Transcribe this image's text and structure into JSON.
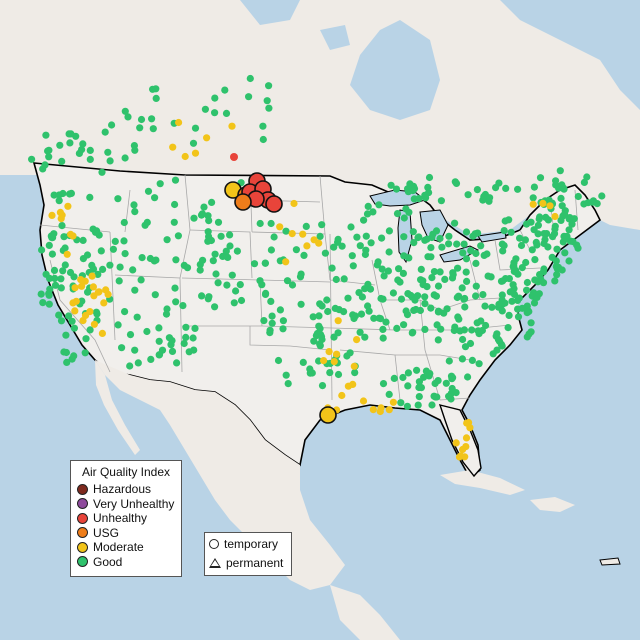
{
  "legend": {
    "title": "Air Quality Index",
    "categories": [
      {
        "label": "Hazardous",
        "color": "#7e2a1e"
      },
      {
        "label": "Very Unhealthy",
        "color": "#8e4a9c"
      },
      {
        "label": "Unhealthy",
        "color": "#e8443a"
      },
      {
        "label": "USG",
        "color": "#ee7d1a"
      },
      {
        "label": "Moderate",
        "color": "#f2c419"
      },
      {
        "label": "Good",
        "color": "#2fc26c"
      }
    ]
  },
  "monitor_types": [
    {
      "label": "temporary",
      "shape": "circle"
    },
    {
      "label": "permanent",
      "shape": "triangle"
    }
  ],
  "colors": {
    "water": "#b9d3e6",
    "land": "#efebe6",
    "us_land": "#f1efec",
    "state_line": "#a8a8a8",
    "border": "#000000",
    "no_data": "#bcbcbc"
  },
  "highlighted_sites": [
    {
      "category": "Moderate",
      "region": "Montana",
      "size": "large"
    },
    {
      "category": "USG",
      "region": "Montana",
      "size": "large"
    },
    {
      "category": "Unhealthy",
      "region": "Montana",
      "size": "large"
    },
    {
      "category": "Unhealthy",
      "region": "Montana",
      "size": "large"
    },
    {
      "category": "Unhealthy",
      "region": "Montana",
      "size": "large"
    },
    {
      "category": "Unhealthy",
      "region": "Montana",
      "size": "large"
    },
    {
      "category": "Unhealthy",
      "region": "Montana",
      "size": "large"
    },
    {
      "category": "USG",
      "region": "Montana",
      "size": "large"
    },
    {
      "category": "Unhealthy",
      "region": "Montana",
      "size": "large"
    },
    {
      "category": "Moderate",
      "region": "Texas",
      "size": "large"
    },
    {
      "category": "Unhealthy",
      "region": "Saskatchewan",
      "size": "small"
    }
  ]
}
